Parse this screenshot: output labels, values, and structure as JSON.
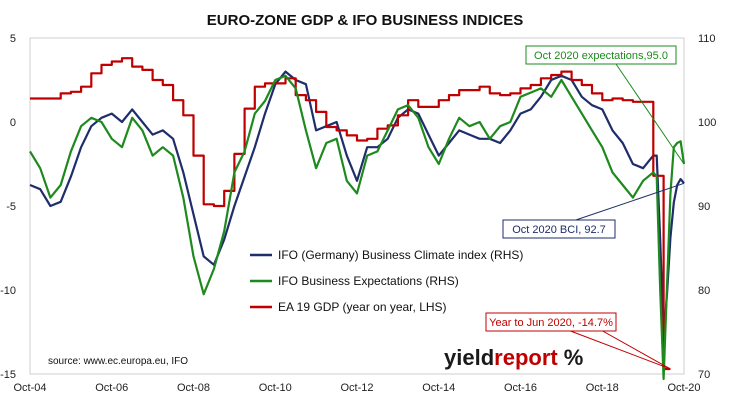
{
  "chart_data": {
    "type": "line",
    "title": "EURO-ZONE GDP & IFO BUSINESS INDICES",
    "x_ticks": [
      "Oct-04",
      "Oct-06",
      "Oct-08",
      "Oct-10",
      "Oct-12",
      "Oct-14",
      "Oct-16",
      "Oct-18",
      "Oct-20"
    ],
    "left_axis": {
      "ticks": [
        "5",
        "0",
        "-5",
        "-10",
        "-15"
      ],
      "ylim": [
        -15,
        5
      ]
    },
    "right_axis": {
      "ticks": [
        "110",
        "100",
        "90",
        "80",
        "70"
      ],
      "ylim": [
        70,
        110
      ]
    },
    "grid": false,
    "legend_position": "center",
    "series": [
      {
        "name": "IFO (Germany) Business Climate index (RHS)",
        "axis": "right",
        "color": "#1f2d6b",
        "points": [
          [
            "2004-10",
            92.5
          ],
          [
            "2005-01",
            92.0
          ],
          [
            "2005-04",
            90.0
          ],
          [
            "2005-07",
            90.5
          ],
          [
            "2005-10",
            93.5
          ],
          [
            "2006-01",
            97.0
          ],
          [
            "2006-04",
            99.5
          ],
          [
            "2006-07",
            100.5
          ],
          [
            "2006-10",
            101.0
          ],
          [
            "2007-01",
            100.0
          ],
          [
            "2007-04",
            101.5
          ],
          [
            "2007-07",
            100.0
          ],
          [
            "2007-10",
            98.5
          ],
          [
            "2008-01",
            99.0
          ],
          [
            "2008-04",
            98.0
          ],
          [
            "2008-07",
            94.0
          ],
          [
            "2008-10",
            89.0
          ],
          [
            "2009-01",
            84.0
          ],
          [
            "2009-04",
            83.0
          ],
          [
            "2009-07",
            86.0
          ],
          [
            "2009-10",
            90.0
          ],
          [
            "2010-01",
            93.5
          ],
          [
            "2010-04",
            97.0
          ],
          [
            "2010-07",
            101.0
          ],
          [
            "2010-10",
            104.5
          ],
          [
            "2011-01",
            106.0
          ],
          [
            "2011-04",
            105.0
          ],
          [
            "2011-07",
            104.5
          ],
          [
            "2011-10",
            99.0
          ],
          [
            "2012-01",
            99.5
          ],
          [
            "2012-04",
            100.0
          ],
          [
            "2012-07",
            96.0
          ],
          [
            "2012-10",
            93.0
          ],
          [
            "2013-01",
            97.0
          ],
          [
            "2013-04",
            97.0
          ],
          [
            "2013-07",
            98.0
          ],
          [
            "2013-10",
            100.5
          ],
          [
            "2014-01",
            101.5
          ],
          [
            "2014-04",
            101.0
          ],
          [
            "2014-07",
            98.5
          ],
          [
            "2014-10",
            96.0
          ],
          [
            "2015-01",
            97.5
          ],
          [
            "2015-04",
            99.0
          ],
          [
            "2015-07",
            98.5
          ],
          [
            "2015-10",
            98.0
          ],
          [
            "2016-01",
            98.0
          ],
          [
            "2016-04",
            97.5
          ],
          [
            "2016-07",
            99.0
          ],
          [
            "2016-10",
            101.0
          ],
          [
            "2017-01",
            101.5
          ],
          [
            "2017-04",
            103.0
          ],
          [
            "2017-07",
            105.0
          ],
          [
            "2017-10",
            105.5
          ],
          [
            "2018-01",
            105.0
          ],
          [
            "2018-04",
            103.0
          ],
          [
            "2018-07",
            102.0
          ],
          [
            "2018-10",
            101.5
          ],
          [
            "2019-01",
            99.0
          ],
          [
            "2019-04",
            97.5
          ],
          [
            "2019-07",
            95.0
          ],
          [
            "2019-10",
            94.5
          ],
          [
            "2020-01",
            96.0
          ],
          [
            "2020-02",
            96.0
          ],
          [
            "2020-03",
            86.0
          ],
          [
            "2020-04",
            74.3
          ],
          [
            "2020-05",
            79.5
          ],
          [
            "2020-06",
            86.2
          ],
          [
            "2020-07",
            90.4
          ],
          [
            "2020-08",
            92.5
          ],
          [
            "2020-09",
            93.2
          ],
          [
            "2020-10",
            92.7
          ]
        ]
      },
      {
        "name": "IFO Business Expectations (RHS)",
        "axis": "right",
        "color": "#1e8a1e",
        "points": [
          [
            "2004-10",
            96.5
          ],
          [
            "2005-01",
            94.5
          ],
          [
            "2005-04",
            91.0
          ],
          [
            "2005-07",
            92.5
          ],
          [
            "2005-10",
            96.5
          ],
          [
            "2006-01",
            99.5
          ],
          [
            "2006-04",
            100.5
          ],
          [
            "2006-07",
            100.0
          ],
          [
            "2006-10",
            98.0
          ],
          [
            "2007-01",
            97.0
          ],
          [
            "2007-04",
            100.5
          ],
          [
            "2007-07",
            99.0
          ],
          [
            "2007-10",
            96.0
          ],
          [
            "2008-01",
            97.0
          ],
          [
            "2008-04",
            96.0
          ],
          [
            "2008-07",
            91.0
          ],
          [
            "2008-10",
            84.0
          ],
          [
            "2009-01",
            79.5
          ],
          [
            "2009-04",
            82.5
          ],
          [
            "2009-07",
            87.0
          ],
          [
            "2009-10",
            94.0
          ],
          [
            "2010-01",
            96.5
          ],
          [
            "2010-04",
            101.0
          ],
          [
            "2010-07",
            102.5
          ],
          [
            "2010-10",
            105.0
          ],
          [
            "2011-01",
            105.5
          ],
          [
            "2011-04",
            104.0
          ],
          [
            "2011-07",
            99.0
          ],
          [
            "2011-10",
            94.5
          ],
          [
            "2012-01",
            97.5
          ],
          [
            "2012-04",
            98.0
          ],
          [
            "2012-07",
            93.0
          ],
          [
            "2012-10",
            91.5
          ],
          [
            "2013-01",
            96.0
          ],
          [
            "2013-04",
            96.5
          ],
          [
            "2013-07",
            99.0
          ],
          [
            "2013-10",
            101.5
          ],
          [
            "2014-01",
            102.0
          ],
          [
            "2014-04",
            100.5
          ],
          [
            "2014-07",
            97.0
          ],
          [
            "2014-10",
            95.0
          ],
          [
            "2015-01",
            98.0
          ],
          [
            "2015-04",
            100.5
          ],
          [
            "2015-07",
            99.5
          ],
          [
            "2015-10",
            100.0
          ],
          [
            "2016-01",
            98.0
          ],
          [
            "2016-04",
            99.5
          ],
          [
            "2016-07",
            100.0
          ],
          [
            "2016-10",
            103.0
          ],
          [
            "2017-01",
            103.5
          ],
          [
            "2017-04",
            104.0
          ],
          [
            "2017-07",
            103.0
          ],
          [
            "2017-10",
            105.0
          ],
          [
            "2018-01",
            103.0
          ],
          [
            "2018-04",
            101.0
          ],
          [
            "2018-07",
            99.0
          ],
          [
            "2018-10",
            97.0
          ],
          [
            "2019-01",
            94.0
          ],
          [
            "2019-04",
            92.5
          ],
          [
            "2019-07",
            91.0
          ],
          [
            "2019-10",
            93.0
          ],
          [
            "2020-01",
            94.0
          ],
          [
            "2020-02",
            93.5
          ],
          [
            "2020-03",
            80.0
          ],
          [
            "2020-04",
            69.4
          ],
          [
            "2020-05",
            80.4
          ],
          [
            "2020-06",
            91.4
          ],
          [
            "2020-07",
            97.0
          ],
          [
            "2020-08",
            97.5
          ],
          [
            "2020-09",
            97.7
          ],
          [
            "2020-10",
            95.0
          ]
        ]
      },
      {
        "name": "EA 19 GDP (year on year, LHS)",
        "axis": "left",
        "color": "#c00000",
        "points": [
          [
            "2004-10",
            1.4
          ],
          [
            "2005-01",
            1.4
          ],
          [
            "2005-04",
            1.4
          ],
          [
            "2005-07",
            1.7
          ],
          [
            "2005-10",
            1.8
          ],
          [
            "2006-01",
            2.1
          ],
          [
            "2006-04",
            2.9
          ],
          [
            "2006-07",
            3.4
          ],
          [
            "2006-10",
            3.6
          ],
          [
            "2007-01",
            3.8
          ],
          [
            "2007-04",
            3.3
          ],
          [
            "2007-07",
            3.1
          ],
          [
            "2007-10",
            2.5
          ],
          [
            "2008-01",
            2.2
          ],
          [
            "2008-04",
            1.3
          ],
          [
            "2008-07",
            0.4
          ],
          [
            "2008-10",
            -2.0
          ],
          [
            "2009-01",
            -4.9
          ],
          [
            "2009-04",
            -5.0
          ],
          [
            "2009-07",
            -4.1
          ],
          [
            "2009-10",
            -1.9
          ],
          [
            "2010-01",
            0.8
          ],
          [
            "2010-04",
            2.1
          ],
          [
            "2010-07",
            2.3
          ],
          [
            "2010-10",
            2.3
          ],
          [
            "2011-01",
            2.6
          ],
          [
            "2011-04",
            1.6
          ],
          [
            "2011-07",
            1.3
          ],
          [
            "2011-10",
            0.6
          ],
          [
            "2012-01",
            -0.3
          ],
          [
            "2012-04",
            -0.5
          ],
          [
            "2012-07",
            -0.8
          ],
          [
            "2012-10",
            -1.1
          ],
          [
            "2013-01",
            -1.0
          ],
          [
            "2013-04",
            -0.4
          ],
          [
            "2013-07",
            -0.2
          ],
          [
            "2013-10",
            0.4
          ],
          [
            "2014-01",
            1.3
          ],
          [
            "2014-04",
            0.9
          ],
          [
            "2014-07",
            0.9
          ],
          [
            "2014-10",
            1.3
          ],
          [
            "2015-01",
            1.6
          ],
          [
            "2015-04",
            1.9
          ],
          [
            "2015-07",
            1.9
          ],
          [
            "2015-10",
            2.1
          ],
          [
            "2016-01",
            1.7
          ],
          [
            "2016-04",
            1.6
          ],
          [
            "2016-07",
            1.7
          ],
          [
            "2016-10",
            2.0
          ],
          [
            "2017-01",
            2.2
          ],
          [
            "2017-04",
            2.6
          ],
          [
            "2017-07",
            2.8
          ],
          [
            "2017-10",
            3.0
          ],
          [
            "2018-01",
            2.5
          ],
          [
            "2018-04",
            2.2
          ],
          [
            "2018-07",
            1.7
          ],
          [
            "2018-10",
            1.3
          ],
          [
            "2019-01",
            1.4
          ],
          [
            "2019-04",
            1.3
          ],
          [
            "2019-07",
            1.2
          ],
          [
            "2019-10",
            1.2
          ],
          [
            "2020-01",
            -3.2
          ],
          [
            "2020-04",
            -14.7
          ],
          [
            "2020-06",
            -14.7
          ]
        ]
      }
    ],
    "annotations": [
      {
        "text": "Oct 2020 expectations,95.0",
        "color": "#1e8a1e",
        "series": 1,
        "x": "2020-10",
        "y": 95.0
      },
      {
        "text": "Oct 2020 BCI, 92.7",
        "color": "#1f2d6b",
        "series": 0,
        "x": "2020-10",
        "y": 92.7
      },
      {
        "text": "Year to Jun 2020, -14.7%",
        "color": "#c00000",
        "series": 2,
        "x": "2020-06",
        "y": -14.7
      }
    ]
  },
  "source": "source: www.ec.europa.eu, IFO",
  "logo": {
    "part1": "yield",
    "part2": "report",
    "symbol": "%"
  }
}
